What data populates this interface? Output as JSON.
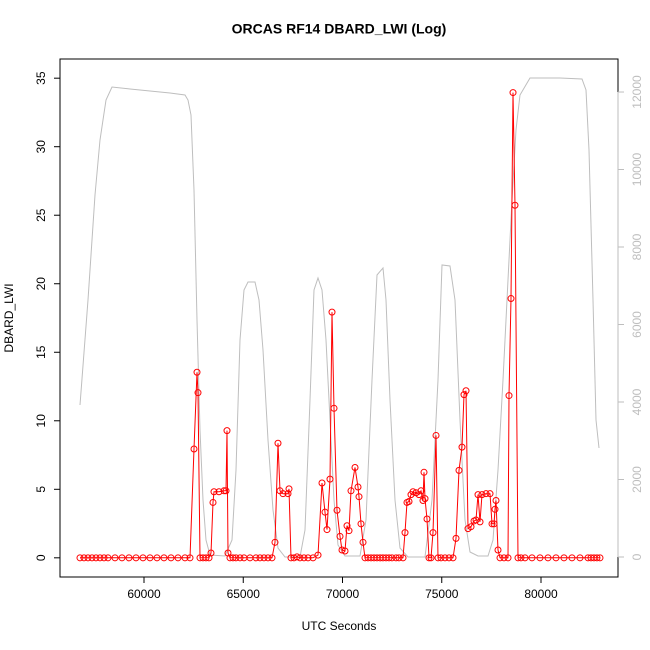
{
  "chart_data": {
    "type": "line",
    "title": "ORCAS RF14 DBARD_LWI (Log)",
    "x_label": "UTC Seconds",
    "y_label": "DBARD_LWI",
    "xlim": [
      55768,
      83879
    ],
    "xticks": [
      60000,
      65000,
      70000,
      75000,
      80000
    ],
    "ylim": [
      -1.4,
      36.4
    ],
    "yticks": [
      0,
      5,
      10,
      15,
      20,
      25,
      30,
      35
    ],
    "y2lim": [
      -516,
      12852
    ],
    "y2ticks": [
      0,
      2000,
      4000,
      6000,
      8000,
      10000,
      12000
    ],
    "y2_tick_color": "#bebebe",
    "grid": false,
    "series": [
      {
        "color": "#ff0000",
        "markers": true,
        "x": [
          56775,
          56977,
          57178,
          57380,
          57581,
          57783,
          57985,
          58186,
          58539,
          58891,
          59244,
          59597,
          59949,
          60302,
          60655,
          61007,
          61360,
          61713,
          62065,
          62317,
          62519,
          62670,
          62720,
          62821,
          62972,
          63123,
          63274,
          63375,
          63476,
          63526,
          63778,
          64030,
          64131,
          64181,
          64231,
          64332,
          64483,
          64634,
          64836,
          65037,
          65340,
          65642,
          65843,
          66045,
          66246,
          66448,
          66599,
          66750,
          66851,
          67002,
          67254,
          67305,
          67405,
          67556,
          67708,
          67859,
          68060,
          68262,
          68514,
          68766,
          68967,
          69118,
          69219,
          69370,
          69471,
          69572,
          69723,
          69874,
          69975,
          70126,
          70227,
          70328,
          70428,
          70630,
          70781,
          70831,
          70932,
          71033,
          71134,
          71285,
          71436,
          71587,
          71738,
          71889,
          72041,
          72192,
          72343,
          72494,
          72695,
          72846,
          73048,
          73149,
          73249,
          73350,
          73451,
          73552,
          73703,
          73854,
          73955,
          74055,
          74106,
          74156,
          74257,
          74358,
          74459,
          74560,
          74711,
          74812,
          74963,
          75164,
          75366,
          75567,
          75718,
          75869,
          76020,
          76121,
          76222,
          76323,
          76474,
          76625,
          76726,
          76827,
          76928,
          77029,
          77230,
          77431,
          77532,
          77633,
          77683,
          77733,
          77834,
          77935,
          78136,
          78338,
          78388,
          78489,
          78590,
          78690,
          78841,
          78992,
          79194,
          79546,
          79949,
          80352,
          80755,
          81158,
          81561,
          81964,
          82367,
          82518,
          82669,
          82820,
          82971
        ],
        "values": [
          0,
          0,
          0,
          0,
          0,
          0,
          0,
          0,
          0,
          0,
          0,
          0,
          0,
          0,
          0,
          0,
          0,
          0,
          0,
          0,
          7.94,
          13.54,
          12.05,
          0,
          0,
          0,
          0,
          0.35,
          4.04,
          4.82,
          4.82,
          4.89,
          4.89,
          9.28,
          0.35,
          0,
          0,
          0,
          0,
          0,
          0,
          0,
          0,
          0,
          0,
          0,
          1.13,
          8.36,
          4.89,
          4.68,
          4.68,
          5.03,
          0,
          0,
          0.07,
          0,
          0,
          0,
          0,
          0.2,
          5.46,
          3.33,
          2.06,
          5.74,
          17.93,
          10.91,
          3.47,
          1.56,
          0.57,
          0.5,
          2.34,
          1.98,
          4.89,
          6.59,
          5.17,
          4.46,
          2.48,
          1.13,
          0,
          0,
          0,
          0,
          0,
          0,
          0,
          0,
          0,
          0,
          0,
          0,
          0,
          1.84,
          4.04,
          4.11,
          4.61,
          4.82,
          4.75,
          4.61,
          4.89,
          4.18,
          6.24,
          4.32,
          2.83,
          0,
          0,
          1.84,
          8.93,
          0,
          0,
          0,
          0,
          0,
          1.42,
          6.38,
          8.08,
          11.91,
          12.19,
          2.13,
          2.27,
          2.69,
          2.76,
          4.61,
          2.62,
          4.61,
          4.68,
          4.68,
          2.48,
          2.48,
          3.54,
          4.18,
          0.57,
          0,
          0,
          0,
          11.84,
          18.92,
          33.95,
          25.73,
          0,
          0,
          0,
          0,
          0,
          0,
          0,
          0,
          0,
          0,
          0,
          0,
          0,
          0,
          0
        ]
      },
      {
        "color": "#bebebe",
        "markers": false,
        "axis": "y2",
        "x": [
          56776,
          57179,
          57531,
          57783,
          58086,
          58388,
          59295,
          60302,
          61310,
          62065,
          62217,
          62368,
          62519,
          62670,
          62821,
          62972,
          63123,
          63325,
          64081,
          64433,
          64635,
          64836,
          65038,
          65239,
          65592,
          65793,
          65995,
          66247,
          66499,
          66751,
          67103,
          67859,
          68111,
          68363,
          68564,
          68766,
          68967,
          69169,
          69370,
          69572,
          69773,
          70126,
          70882,
          71184,
          71486,
          71738,
          72040,
          72191,
          72393,
          72645,
          72897,
          73300,
          74156,
          74509,
          74811,
          75013,
          75416,
          75668,
          75919,
          76171,
          76423,
          76826,
          77330,
          77582,
          77834,
          78086,
          78287,
          78539,
          78741,
          78942,
          79446,
          80957,
          82065,
          82267,
          82418,
          82620,
          82771,
          82922
        ],
        "values": [
          3923,
          6632,
          9342,
          10761,
          11794,
          12129,
          12077,
          12026,
          11974,
          11923,
          11794,
          11406,
          9471,
          6116,
          3277,
          1471,
          439,
          52,
          26,
          439,
          2245,
          5600,
          6890,
          7097,
          7097,
          6632,
          5342,
          3019,
          1213,
          232,
          0,
          0,
          697,
          4052,
          6890,
          7200,
          6890,
          5600,
          3535,
          1471,
          310,
          26,
          26,
          955,
          4568,
          7277,
          7458,
          6632,
          4052,
          1471,
          232,
          0,
          0,
          1471,
          4568,
          7535,
          7510,
          6632,
          3535,
          955,
          129,
          26,
          26,
          439,
          2245,
          4568,
          6632,
          9213,
          11019,
          11923,
          12361,
          12361,
          12335,
          12052,
          10503,
          6632,
          3535,
          2813
        ]
      }
    ]
  }
}
